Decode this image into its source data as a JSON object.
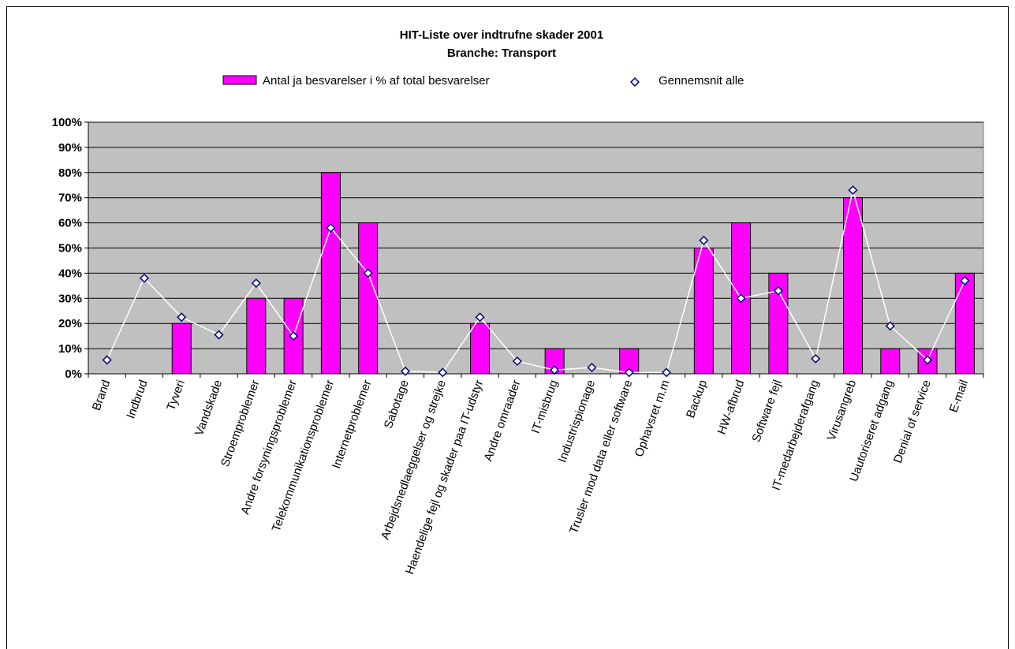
{
  "chart_data": {
    "type": "bar",
    "title": "HIT-Liste over indtrufne skader 2001",
    "subtitle": "Branche: Transport",
    "categories": [
      "Brand",
      "Indbrud",
      "Tyveri",
      "Vandskade",
      "Stroemproblemer",
      "Andre forsyningsproblemer",
      "Telekommunikationsproblemer",
      "Internetproblemer",
      "Sabotage",
      "Arbejdsnedlaeggelser og strejke",
      "Haendelige fejl og skader paa IT-udstyr",
      "Andre omraader",
      "IT-misbrug",
      "Industrispionage",
      "Trusler mod data eller software",
      "Ophavsret m.m",
      "Backup",
      "HW-afbrud",
      "Software fejl",
      "IT-medarbejderafgang",
      "Virusangreb",
      "Uautoriseret adgang",
      "Denial of service",
      "E-mail"
    ],
    "series": [
      {
        "name": "Antal ja besvarelser  i % af total besvarelser",
        "kind": "bar",
        "color": "#ff00ff",
        "values": [
          0,
          0,
          20,
          0,
          30,
          30,
          80,
          60,
          0,
          0,
          20,
          0,
          10,
          0,
          10,
          0,
          50,
          60,
          40,
          0,
          70,
          10,
          10,
          40
        ]
      },
      {
        "name": "Gennemsnit alle",
        "kind": "line-marker",
        "color": "#000080",
        "line_color": "#ffffff",
        "values": [
          5.5,
          38,
          22.5,
          15.5,
          36,
          15,
          58,
          40,
          1,
          0.5,
          22.5,
          5,
          1.5,
          2.5,
          0.5,
          0.5,
          53,
          30,
          33,
          6,
          73,
          19,
          5.5,
          37
        ]
      }
    ],
    "ylim": [
      0,
      100
    ],
    "yticks": [
      "0%",
      "10%",
      "20%",
      "30%",
      "40%",
      "50%",
      "60%",
      "70%",
      "80%",
      "90%",
      "100%"
    ],
    "grid": true,
    "plot_background": "#c0c0c0",
    "legend_position": "top"
  }
}
